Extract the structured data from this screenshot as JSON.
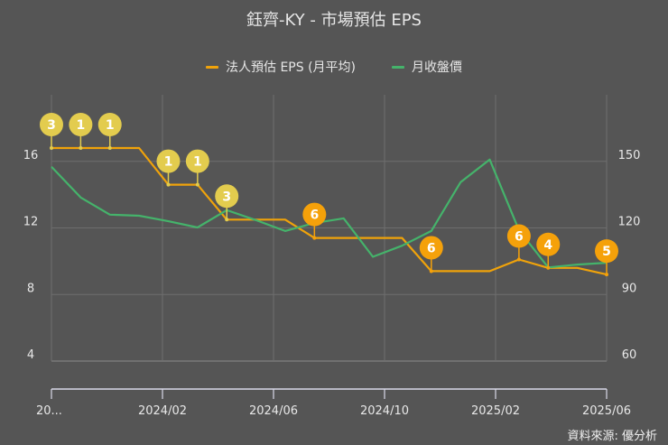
{
  "chart_data": {
    "type": "line",
    "title": "鈺齊-KY - 市場預估 EPS",
    "x_tick_labels": [
      "20...",
      "2024/02",
      "2024/06",
      "2024/10",
      "2025/02",
      "2025/06"
    ],
    "left_axis": {
      "ticks": [
        4,
        8,
        12,
        16
      ],
      "ylim": [
        4,
        20
      ]
    },
    "right_axis": {
      "ticks": [
        60,
        90,
        120,
        150
      ],
      "ylim": [
        60,
        180
      ]
    },
    "grid": true,
    "legend_position": "top",
    "series": [
      {
        "name": "法人預估 EPS (月平均)",
        "axis": "left",
        "color": "#f0a30a",
        "values": [
          16.8,
          16.8,
          16.8,
          16.8,
          14.6,
          14.6,
          12.5,
          12.5,
          12.5,
          11.4,
          11.4,
          11.4,
          11.4,
          9.4,
          9.4,
          9.4,
          10.1,
          9.6,
          9.6,
          9.2
        ]
      },
      {
        "name": "月收盤價",
        "axis": "right",
        "color": "#45b36b",
        "values": [
          147.6,
          133.7,
          126,
          125.5,
          123,
          120.2,
          128,
          123.5,
          118.6,
          122.2,
          124.3,
          107,
          112,
          118.6,
          140.6,
          150.8,
          119,
          102.2,
          103.5,
          104.3
        ]
      }
    ],
    "annotations": [
      {
        "index": 0,
        "label": "3",
        "color": "#e3cc4e"
      },
      {
        "index": 1,
        "label": "1",
        "color": "#e3cc4e"
      },
      {
        "index": 2,
        "label": "1",
        "color": "#e3cc4e"
      },
      {
        "index": 4,
        "label": "1",
        "color": "#e3cc4e"
      },
      {
        "index": 5,
        "label": "1",
        "color": "#e3cc4e"
      },
      {
        "index": 6,
        "label": "3",
        "color": "#e3cc4e"
      },
      {
        "index": 9,
        "label": "6",
        "color": "#f5a10a"
      },
      {
        "index": 13,
        "label": "6",
        "color": "#f5a10a"
      },
      {
        "index": 16,
        "label": "6",
        "color": "#f5a10a"
      },
      {
        "index": 17,
        "label": "4",
        "color": "#f5a10a"
      },
      {
        "index": 19,
        "label": "5",
        "color": "#f5a10a"
      }
    ]
  },
  "source": "資料來源: 優分析"
}
